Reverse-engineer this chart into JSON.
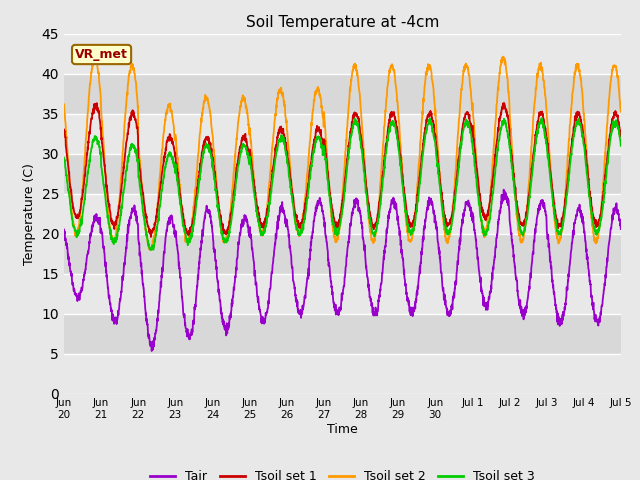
{
  "title": "Soil Temperature at -4cm",
  "xlabel": "Time",
  "ylabel": "Temperature (C)",
  "ylim": [
    0,
    45
  ],
  "yticks": [
    0,
    5,
    10,
    15,
    20,
    25,
    30,
    35,
    40,
    45
  ],
  "fig_bg_color": "#e8e8e8",
  "ax_bg_color": "#e0e0e0",
  "grid_color": "#f5f5f5",
  "band_colors": [
    "#e8e8e8",
    "#d8d8d8"
  ],
  "colors": {
    "Tair": "#9900cc",
    "Tsoil1": "#cc0000",
    "Tsoil2": "#ff9900",
    "Tsoil3": "#00cc00"
  },
  "legend_labels": [
    "Tair",
    "Tsoil set 1",
    "Tsoil set 2",
    "Tsoil set 3"
  ],
  "annotation_text": "VR_met",
  "annotation_box_color": "#ffffcc",
  "annotation_border_color": "#996600",
  "annotation_text_color": "#990000",
  "n_days": 15,
  "ppd": 144,
  "tick_labels": [
    "Jun\n20",
    "Jun\n21",
    "Jun\n22",
    "Jun\n23",
    "Jun\n24",
    "Jun\n25",
    "Jun\n26",
    "Jun\n27",
    "Jun\n28",
    "Jun\n29",
    "Jun\n30",
    "Jul 1",
    "Jul 2",
    "Jul 3",
    "Jul 4",
    "Jul 5"
  ]
}
